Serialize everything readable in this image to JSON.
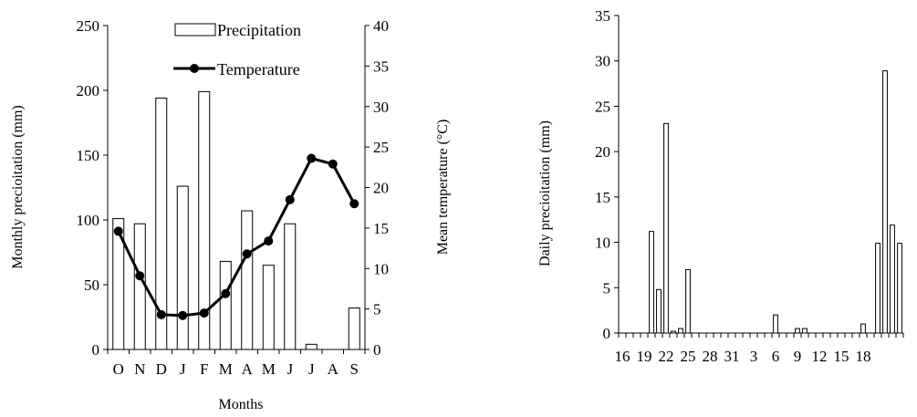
{
  "chart_data": [
    {
      "type": "bar+line",
      "xlabel": "Months",
      "categories": [
        "O",
        "N",
        "D",
        "J",
        "F",
        "M",
        "A",
        "M",
        "J",
        "J",
        "A",
        "S"
      ],
      "series": [
        {
          "name": "Precipitation",
          "kind": "bar",
          "axis": "left",
          "values": [
            101,
            97,
            194,
            126,
            199,
            68,
            107,
            65,
            97,
            4,
            0,
            32
          ]
        },
        {
          "name": "Temperature",
          "kind": "line",
          "axis": "right",
          "marker": "circle",
          "values": [
            14.6,
            9.1,
            4.3,
            4.2,
            4.5,
            6.9,
            11.8,
            13.4,
            18.5,
            23.6,
            22.9,
            18.0
          ]
        }
      ],
      "ylabel_left": "Monthly precioitation (mm)",
      "ylim_left": [
        0,
        250
      ],
      "yticks_left": [
        "0",
        "50",
        "100",
        "150",
        "200",
        "250"
      ],
      "ylabel_right": "Mean temperature (°C)",
      "ylim_right": [
        0,
        40
      ],
      "yticks_right": [
        "0",
        "5",
        "10",
        "15",
        "20",
        "25",
        "30",
        "35",
        "40"
      ],
      "legend_position": "top-center",
      "grid": false
    },
    {
      "type": "bar",
      "ylabel": "Daily precioitation (mm)",
      "ylim": [
        0,
        35
      ],
      "yticks": [
        "0",
        "5",
        "10",
        "15",
        "20",
        "25",
        "30",
        "35"
      ],
      "xtick_labels": [
        "16",
        "19",
        "22",
        "25",
        "28",
        "31",
        "3",
        "6",
        "9",
        "12",
        "15",
        "18"
      ],
      "values": [
        0,
        0,
        0,
        0,
        11.2,
        4.8,
        23.1,
        0.2,
        0.5,
        7.0,
        0,
        0,
        0,
        0,
        0,
        0,
        0,
        0,
        0,
        0,
        0,
        2.0,
        0,
        0,
        0.5,
        0.5,
        0,
        0,
        0,
        0,
        0,
        0,
        0,
        1.0,
        0,
        9.9,
        28.9,
        11.9,
        9.9
      ],
      "grid": false
    }
  ]
}
